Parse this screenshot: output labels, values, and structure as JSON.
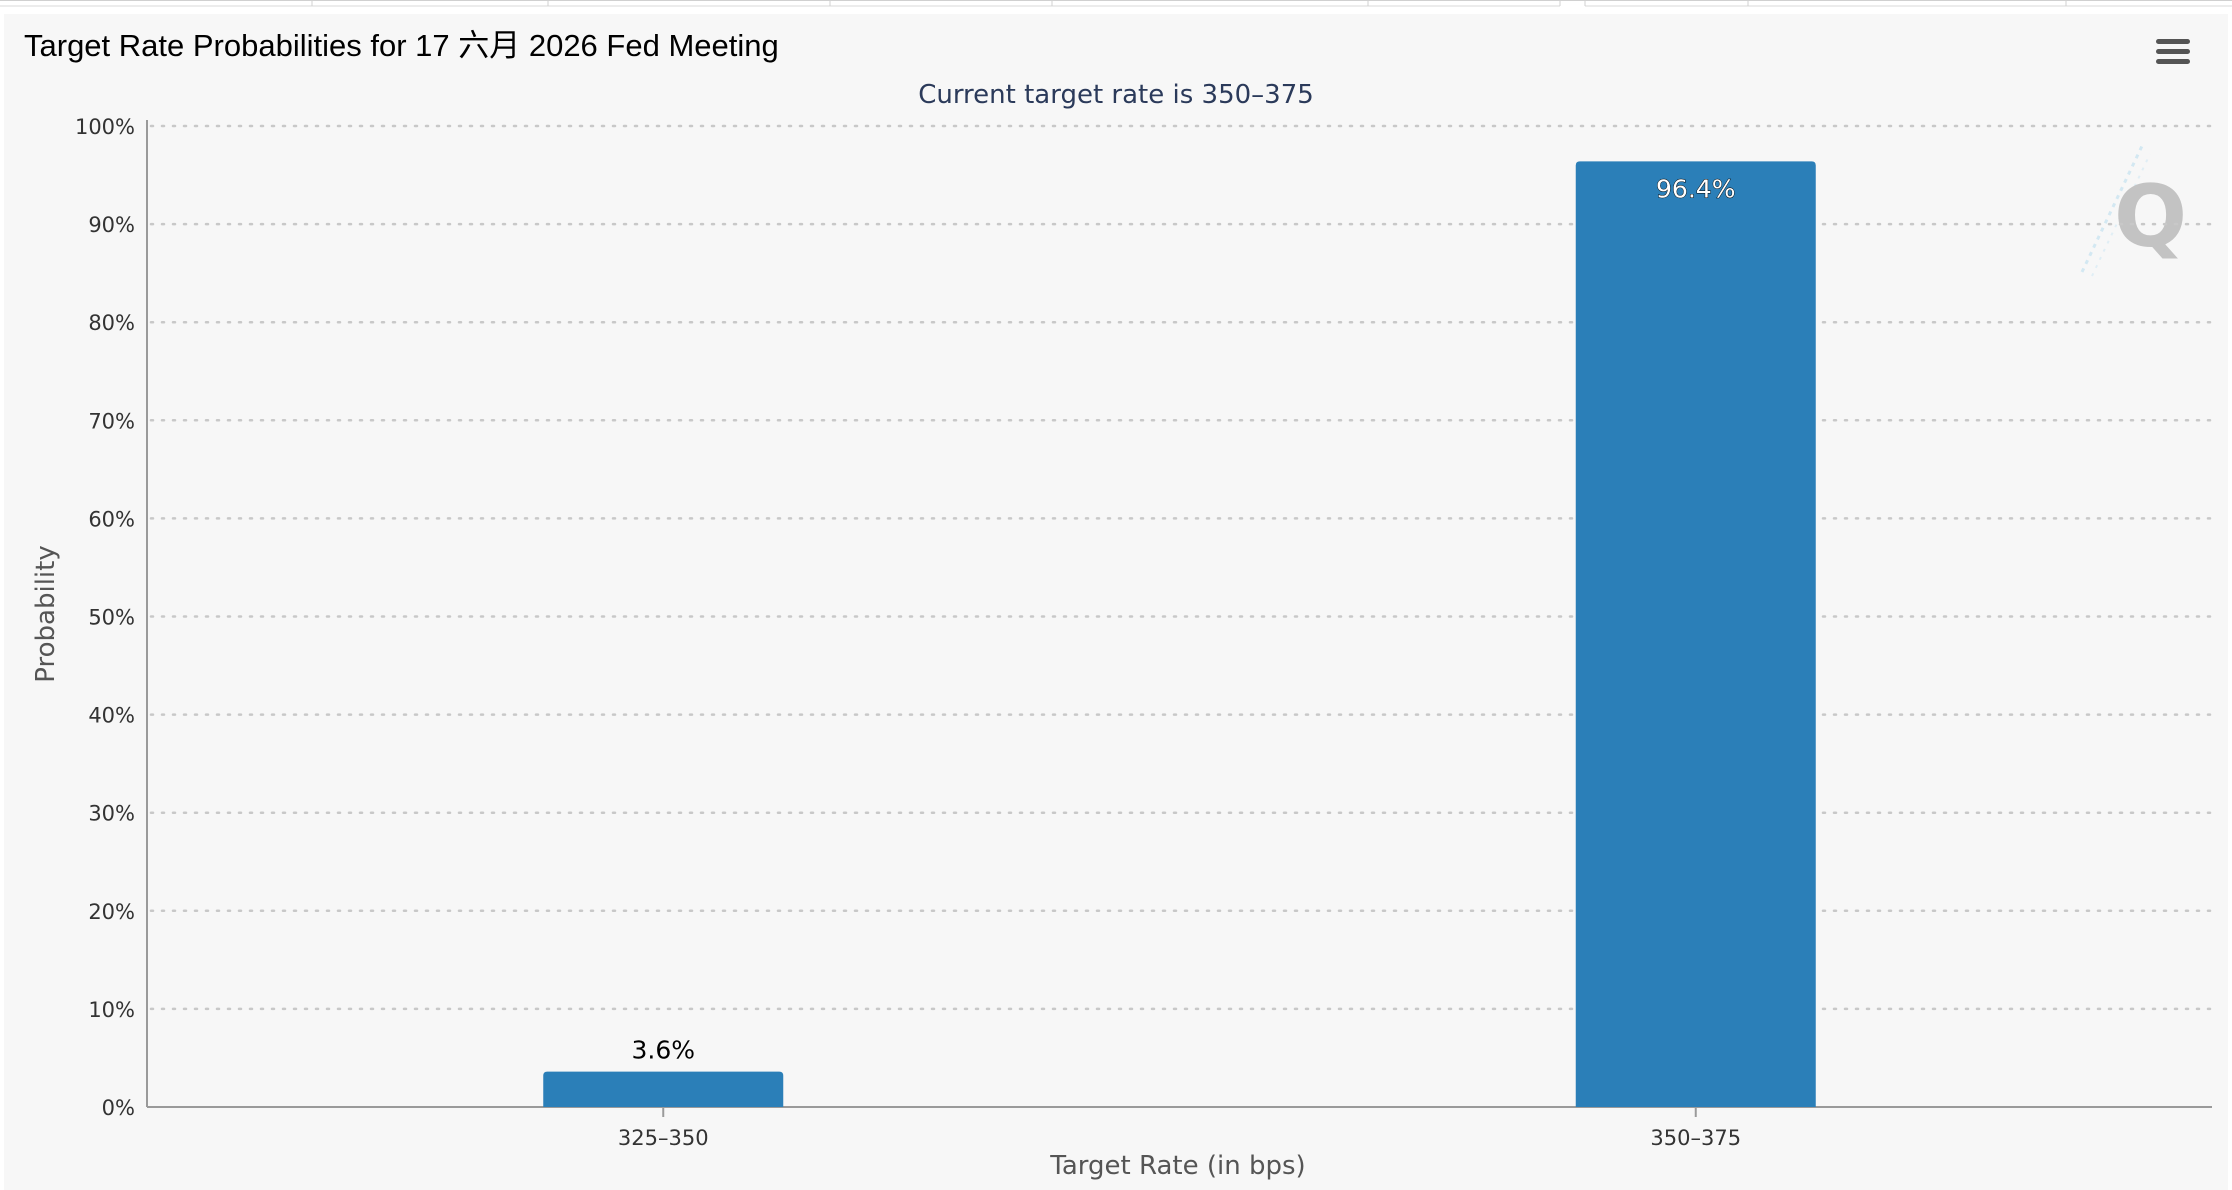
{
  "chart_data": {
    "type": "bar",
    "title": "Target Rate Probabilities for 17 六月 2026 Fed Meeting",
    "subtitle": "Current target rate is 350–375",
    "xlabel": "Target Rate (in bps)",
    "ylabel": "Probability",
    "categories": [
      "325–350",
      "350–375"
    ],
    "values": [
      3.6,
      96.4
    ],
    "data_labels": [
      "3.6%",
      "96.4%"
    ],
    "ylim": [
      0,
      100
    ],
    "yticks": [
      "0%",
      "10%",
      "20%",
      "30%",
      "40%",
      "50%",
      "60%",
      "70%",
      "80%",
      "90%",
      "100%"
    ],
    "grid": "horizontal-dotted",
    "legend": "none",
    "bar_color": "#2b7fb8"
  },
  "colors": {
    "panel_bg": "#f7f7f7",
    "subtitle": "#2b3a5a",
    "axis_text": "#333333",
    "grid": "#c8c8c8"
  },
  "icons": {
    "menu": "hamburger-menu-icon",
    "watermark": "q-logo-watermark"
  }
}
